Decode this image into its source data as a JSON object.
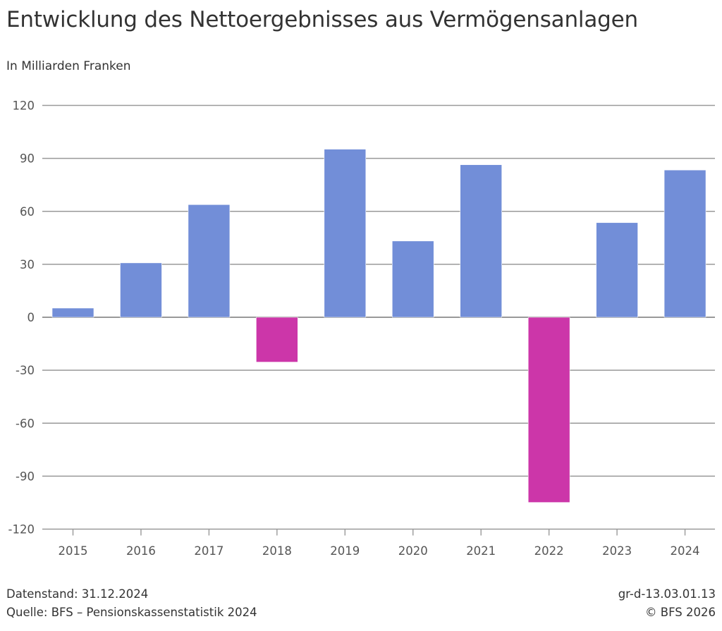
{
  "title": "Entwicklung des Nettoergebnisses aus Vermögensanlagen",
  "subtitle": "In Milliarden Franken",
  "footer": {
    "datenstand": "Datenstand: 31.12.2024",
    "quelle": "Quelle: BFS – Pensionskassenstatistik 2024",
    "code": "gr-d-13.03.01.13",
    "copyright": "© BFS 2026"
  },
  "chart_data": {
    "type": "bar",
    "title": "Entwicklung des Nettoergebnisses aus Vermögensanlagen",
    "ylabel": "In Milliarden Franken",
    "categories": [
      "2015",
      "2016",
      "2017",
      "2018",
      "2019",
      "2020",
      "2021",
      "2022",
      "2023",
      "2024"
    ],
    "values": [
      5.2,
      30.8,
      63.8,
      -25.4,
      95.2,
      43.2,
      86.4,
      -104.9,
      53.6,
      83.4
    ],
    "ylim": [
      -120,
      120
    ],
    "yticks": [
      "120",
      "90",
      "60",
      "30",
      "0",
      "-30",
      "-60",
      "-90",
      "-120"
    ],
    "grid": true,
    "legend": "none",
    "colors": {
      "positive": "#728ed8",
      "negative": "#cc36a9",
      "grid": "#999999"
    }
  }
}
